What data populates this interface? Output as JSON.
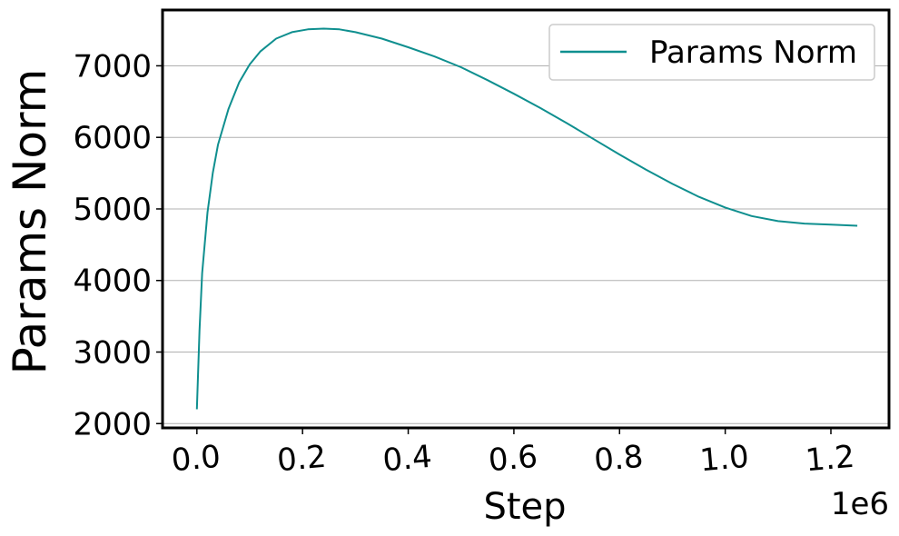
{
  "chart_data": {
    "type": "line",
    "xlabel": "Step",
    "ylabel": "Params Norm",
    "x_offset_label": "1e6",
    "xlim": [
      -0.065,
      1.31
    ],
    "ylim": [
      1940,
      7780
    ],
    "x_ticks": [
      0.0,
      0.2,
      0.4,
      0.6,
      0.8,
      1.0,
      1.2
    ],
    "x_tick_labels": [
      "0.0",
      "0.2",
      "0.4",
      "0.6",
      "0.8",
      "1.0",
      "1.2"
    ],
    "y_ticks": [
      2000,
      3000,
      4000,
      5000,
      6000,
      7000
    ],
    "y_tick_labels": [
      "2000",
      "3000",
      "4000",
      "5000",
      "6000",
      "7000"
    ],
    "grid": "y",
    "legend_position": "top-right",
    "series": [
      {
        "name": "Params Norm",
        "color": "#0f8f8f",
        "x": [
          0.0,
          0.005,
          0.01,
          0.02,
          0.03,
          0.04,
          0.06,
          0.08,
          0.1,
          0.12,
          0.15,
          0.18,
          0.21,
          0.24,
          0.27,
          0.3,
          0.35,
          0.4,
          0.45,
          0.5,
          0.55,
          0.6,
          0.65,
          0.7,
          0.75,
          0.8,
          0.85,
          0.9,
          0.95,
          1.0,
          1.05,
          1.1,
          1.15,
          1.2,
          1.25
        ],
        "y": [
          2200,
          3300,
          4100,
          4950,
          5500,
          5900,
          6400,
          6770,
          7020,
          7200,
          7380,
          7470,
          7510,
          7520,
          7510,
          7470,
          7380,
          7260,
          7130,
          6980,
          6800,
          6610,
          6410,
          6200,
          5980,
          5760,
          5550,
          5350,
          5170,
          5020,
          4900,
          4830,
          4795,
          4780,
          4765
        ]
      }
    ]
  }
}
